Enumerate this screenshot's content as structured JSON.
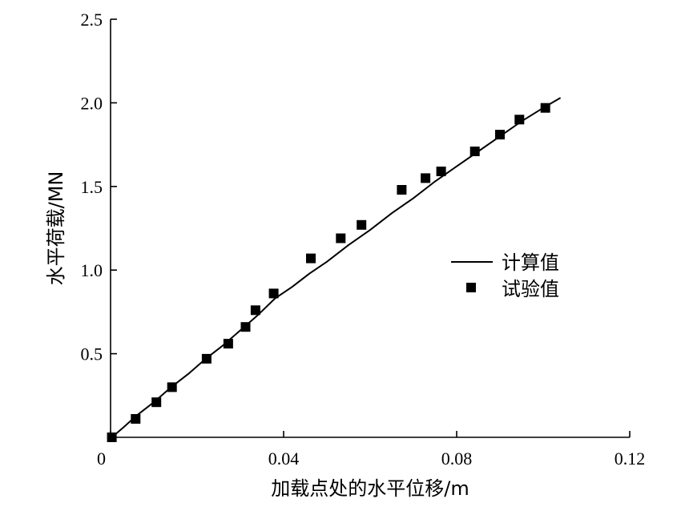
{
  "chart_data": {
    "type": "scatter",
    "xlabel": "加载点处的水平位移/m",
    "ylabel": "水平荷载/MN",
    "xlim": [
      0,
      0.12
    ],
    "ylim": [
      0,
      2.5
    ],
    "x_ticks": [
      0,
      0.04,
      0.08,
      0.12
    ],
    "x_tick_labels": [
      "0",
      "0.04",
      "0.08",
      "0.12"
    ],
    "y_ticks": [
      0.5,
      1.0,
      1.5,
      2.0,
      2.5
    ],
    "y_tick_labels": [
      "0.5",
      "1.0",
      "1.5",
      "2.0",
      "2.5"
    ],
    "grid": false,
    "legend_position": "right",
    "series": [
      {
        "name": "计算值",
        "kind": "line",
        "color": "#000000",
        "points": [
          [
            0.0003,
            0.0
          ],
          [
            0.003,
            0.06
          ],
          [
            0.006,
            0.13
          ],
          [
            0.01,
            0.21
          ],
          [
            0.014,
            0.3
          ],
          [
            0.018,
            0.38
          ],
          [
            0.022,
            0.47
          ],
          [
            0.026,
            0.55
          ],
          [
            0.03,
            0.64
          ],
          [
            0.034,
            0.73
          ],
          [
            0.038,
            0.83
          ],
          [
            0.042,
            0.9
          ],
          [
            0.046,
            0.98
          ],
          [
            0.05,
            1.05
          ],
          [
            0.055,
            1.15
          ],
          [
            0.06,
            1.24
          ],
          [
            0.065,
            1.34
          ],
          [
            0.07,
            1.43
          ],
          [
            0.075,
            1.53
          ],
          [
            0.08,
            1.62
          ],
          [
            0.085,
            1.71
          ],
          [
            0.09,
            1.8
          ],
          [
            0.095,
            1.89
          ],
          [
            0.1,
            1.97
          ],
          [
            0.104,
            2.03
          ]
        ]
      },
      {
        "name": "试验值",
        "kind": "scatter",
        "marker": "square",
        "color": "#000000",
        "points": [
          [
            0.0003,
            0.0
          ],
          [
            0.0058,
            0.11
          ],
          [
            0.0106,
            0.21
          ],
          [
            0.0142,
            0.3
          ],
          [
            0.0222,
            0.47
          ],
          [
            0.0272,
            0.56
          ],
          [
            0.0312,
            0.66
          ],
          [
            0.0335,
            0.76
          ],
          [
            0.0377,
            0.86
          ],
          [
            0.0463,
            1.07
          ],
          [
            0.0532,
            1.19
          ],
          [
            0.058,
            1.27
          ],
          [
            0.0673,
            1.48
          ],
          [
            0.0728,
            1.55
          ],
          [
            0.0764,
            1.59
          ],
          [
            0.0842,
            1.71
          ],
          [
            0.09,
            1.81
          ],
          [
            0.0945,
            1.9
          ],
          [
            0.1005,
            1.97
          ]
        ]
      }
    ]
  }
}
